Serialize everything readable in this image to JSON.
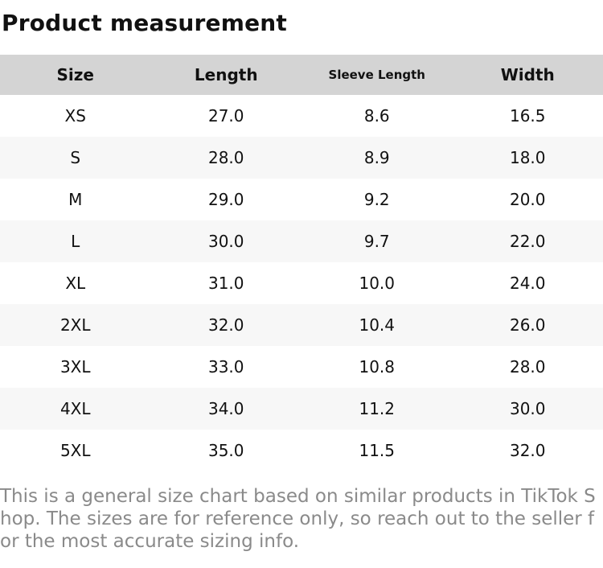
{
  "page": {
    "title": "Product measurement"
  },
  "table": {
    "headers": [
      "Size",
      "Length",
      "Sleeve Length",
      "Width"
    ],
    "rows": [
      [
        "XS",
        "27.0",
        "8.6",
        "16.5"
      ],
      [
        "S",
        "28.0",
        "8.9",
        "18.0"
      ],
      [
        "M",
        "29.0",
        "9.2",
        "20.0"
      ],
      [
        "L",
        "30.0",
        "9.7",
        "22.0"
      ],
      [
        "XL",
        "31.0",
        "10.0",
        "24.0"
      ],
      [
        "2XL",
        "32.0",
        "10.4",
        "26.0"
      ],
      [
        "3XL",
        "33.0",
        "10.8",
        "28.0"
      ],
      [
        "4XL",
        "34.0",
        "11.2",
        "30.0"
      ],
      [
        "5XL",
        "35.0",
        "11.5",
        "32.0"
      ]
    ]
  },
  "footer": {
    "disclaimer": "This is a general size chart based on similar products in TikTok Shop. The sizes are for reference only, so reach out to the seller for the most accurate sizing info."
  },
  "colors": {
    "header_bg": "#d4d4d4",
    "row_alt_bg": "#f7f7f7",
    "text": "#111111",
    "disclaimer_text": "#8a8a8a"
  }
}
